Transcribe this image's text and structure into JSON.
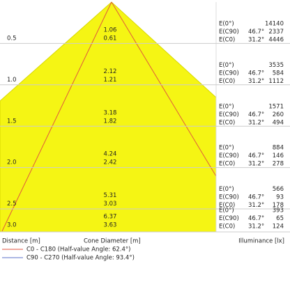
{
  "rows": [
    {
      "distance": "0.5",
      "diameters": [
        "1.06",
        "0.61"
      ],
      "illuminance": [
        {
          "label": "E(0°)",
          "value": 14140
        },
        {
          "label": "E(C90)",
          "angle": "46.7°",
          "value": 2337
        },
        {
          "label": "E(C0)",
          "angle": "31.2°",
          "value": 4446
        }
      ]
    },
    {
      "distance": "1.0",
      "diameters": [
        "2.12",
        "1.21"
      ],
      "illuminance": [
        {
          "label": "E(0°)",
          "value": 3535
        },
        {
          "label": "E(C90)",
          "angle": "46.7°",
          "value": 584
        },
        {
          "label": "E(C0)",
          "angle": "31.2°",
          "value": 1112
        }
      ]
    },
    {
      "distance": "1.5",
      "diameters": [
        "3.18",
        "1.82"
      ],
      "illuminance": [
        {
          "label": "E(0°)",
          "value": 1571
        },
        {
          "label": "E(C90)",
          "angle": "46.7°",
          "value": 260
        },
        {
          "label": "E(C0)",
          "angle": "31.2°",
          "value": 494
        }
      ]
    },
    {
      "distance": "2.0",
      "diameters": [
        "4.24",
        "2.42"
      ],
      "illuminance": [
        {
          "label": "E(0°)",
          "value": 884
        },
        {
          "label": "E(C90)",
          "angle": "46.7°",
          "value": 146
        },
        {
          "label": "E(C0)",
          "angle": "31.2°",
          "value": 278
        }
      ]
    },
    {
      "distance": "2.5",
      "diameters": [
        "5.31",
        "3.03"
      ],
      "illuminance": [
        {
          "label": "E(0°)",
          "value": 566
        },
        {
          "label": "E(C90)",
          "angle": "46.7°",
          "value": 93
        },
        {
          "label": "E(C0)",
          "angle": "31.2°",
          "value": 178
        }
      ]
    },
    {
      "distance": "3.0",
      "diameters": [
        "6.37",
        "3.63"
      ],
      "illuminance": [
        {
          "label": "E(0°)",
          "value": 393
        },
        {
          "label": "E(C90)",
          "angle": "46.7°",
          "value": 65
        },
        {
          "label": "E(C0)",
          "angle": "31.2°",
          "value": 124
        }
      ]
    }
  ],
  "footer": {
    "distance": "Distance [m]",
    "diameter": "Cone Diameter [m]",
    "illuminance": "Illuminance [lx]"
  },
  "legend": [
    {
      "label": "C0 - C180 (Half-value Angle: 62.4°)",
      "color": "#e0503c"
    },
    {
      "label": "C90 - C270 (Half-value Angle: 93.4°)",
      "color": "#5a6fc8"
    }
  ]
}
